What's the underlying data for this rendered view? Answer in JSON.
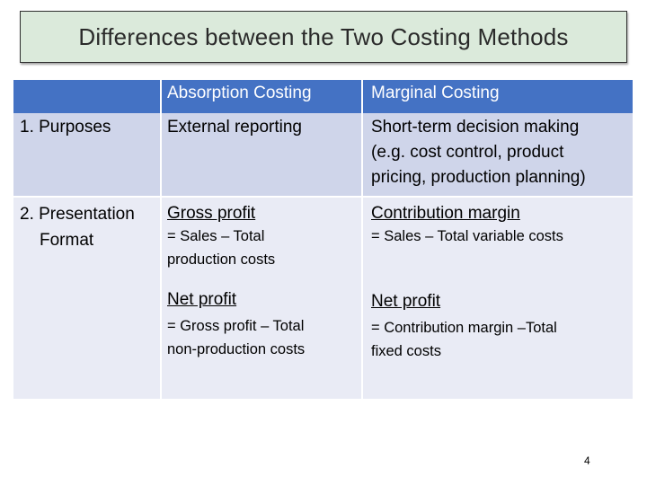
{
  "title": "Differences between the Two Costing Methods",
  "table": {
    "headers": {
      "col0": "",
      "absorption": "Absorption Costing",
      "marginal": "Marginal Costing"
    },
    "row1": {
      "label": "1. Purposes",
      "absorption": "External reporting",
      "marginal_line1": "Short-term decision making",
      "marginal_line2": "(e.g. cost control, product",
      "marginal_line3": "pricing, production planning)"
    },
    "row2": {
      "label_line1": "2. Presentation",
      "label_line2": "Format",
      "abs_gross_title": "Gross profit",
      "abs_gross_line1": "= Sales – Total",
      "abs_gross_line2": "production costs",
      "mar_contrib_title": "Contribution margin",
      "mar_contrib_line1": "= Sales – Total variable costs",
      "abs_net_title": "Net profit",
      "abs_net_line1": "= Gross profit – Total",
      "abs_net_line2": "non-production costs",
      "mar_net_title": "Net profit",
      "mar_net_line1": "= Contribution margin –Total",
      "mar_net_line2": "fixed costs"
    }
  },
  "page_number": "4"
}
